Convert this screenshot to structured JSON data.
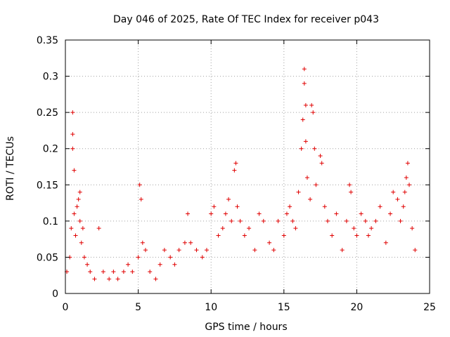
{
  "chart_data": {
    "type": "scatter",
    "title": "Day 046 of 2025, Rate Of TEC Index for receiver p043",
    "xlabel": "GPS time / hours",
    "ylabel": "ROTI / TECUs",
    "xlim": [
      0,
      25
    ],
    "ylim": [
      0,
      0.35
    ],
    "x_ticks": [
      0,
      5,
      10,
      15,
      20,
      25
    ],
    "x_tick_labels": [
      "0",
      "5",
      "10",
      "15",
      "20",
      "25"
    ],
    "y_ticks": [
      0,
      0.05,
      0.1,
      0.15,
      0.2,
      0.25,
      0.3,
      0.35
    ],
    "y_tick_labels": [
      "0",
      "0.05",
      "0.1",
      "0.15",
      "0.2",
      "0.25",
      "0.3",
      "0.35"
    ],
    "grid": true,
    "marker": "+",
    "color": "#e00000",
    "series": [
      {
        "name": "ROTI",
        "x": [
          0.1,
          0.3,
          0.4,
          0.5,
          0.5,
          0.5,
          0.6,
          0.6,
          0.7,
          0.8,
          0.9,
          1.0,
          1.0,
          1.1,
          1.2,
          1.3,
          1.5,
          1.7,
          2.0,
          2.3,
          2.6,
          3.0,
          3.3,
          3.6,
          4.0,
          4.3,
          4.6,
          5.0,
          5.1,
          5.2,
          5.3,
          5.5,
          5.8,
          6.2,
          6.5,
          6.8,
          7.2,
          7.5,
          7.8,
          8.2,
          8.4,
          8.6,
          9.0,
          9.4,
          9.7,
          10.0,
          10.2,
          10.5,
          10.8,
          11.0,
          11.2,
          11.4,
          11.6,
          11.7,
          11.8,
          12.0,
          12.3,
          12.6,
          13.0,
          13.3,
          13.6,
          14.0,
          14.3,
          14.6,
          15.0,
          15.2,
          15.4,
          15.6,
          15.8,
          16.0,
          16.2,
          16.3,
          16.4,
          16.4,
          16.5,
          16.5,
          16.6,
          16.8,
          16.9,
          17.0,
          17.1,
          17.2,
          17.5,
          17.6,
          17.8,
          18.0,
          18.3,
          18.6,
          19.0,
          19.3,
          19.5,
          19.6,
          19.8,
          20.0,
          20.3,
          20.6,
          20.8,
          21.0,
          21.3,
          21.6,
          22.0,
          22.3,
          22.5,
          22.8,
          23.0,
          23.2,
          23.3,
          23.4,
          23.5,
          23.6,
          23.8,
          24.0
        ],
        "y": [
          0.03,
          0.05,
          0.09,
          0.25,
          0.22,
          0.2,
          0.17,
          0.11,
          0.08,
          0.12,
          0.13,
          0.14,
          0.1,
          0.07,
          0.09,
          0.05,
          0.04,
          0.03,
          0.02,
          0.09,
          0.03,
          0.02,
          0.03,
          0.02,
          0.03,
          0.04,
          0.03,
          0.05,
          0.15,
          0.13,
          0.07,
          0.06,
          0.03,
          0.02,
          0.04,
          0.06,
          0.05,
          0.04,
          0.06,
          0.07,
          0.11,
          0.07,
          0.06,
          0.05,
          0.06,
          0.11,
          0.12,
          0.08,
          0.09,
          0.11,
          0.13,
          0.1,
          0.17,
          0.18,
          0.12,
          0.1,
          0.08,
          0.09,
          0.06,
          0.11,
          0.1,
          0.07,
          0.06,
          0.1,
          0.08,
          0.11,
          0.12,
          0.1,
          0.09,
          0.14,
          0.2,
          0.24,
          0.31,
          0.29,
          0.26,
          0.21,
          0.16,
          0.13,
          0.26,
          0.25,
          0.2,
          0.15,
          0.19,
          0.18,
          0.12,
          0.1,
          0.08,
          0.11,
          0.06,
          0.1,
          0.15,
          0.14,
          0.09,
          0.08,
          0.11,
          0.1,
          0.08,
          0.09,
          0.1,
          0.12,
          0.07,
          0.11,
          0.14,
          0.13,
          0.1,
          0.12,
          0.14,
          0.16,
          0.18,
          0.15,
          0.09,
          0.06
        ]
      }
    ]
  }
}
